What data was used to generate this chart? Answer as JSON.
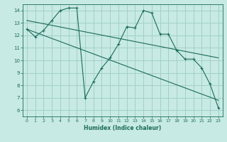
{
  "xlabel": "Humidex (Indice chaleur)",
  "xlim": [
    -0.5,
    23.5
  ],
  "ylim": [
    5.5,
    14.5
  ],
  "xticks": [
    0,
    1,
    2,
    3,
    4,
    5,
    6,
    7,
    8,
    9,
    10,
    11,
    12,
    13,
    14,
    15,
    16,
    17,
    18,
    19,
    20,
    21,
    22,
    23
  ],
  "yticks": [
    6,
    7,
    8,
    9,
    10,
    11,
    12,
    13,
    14
  ],
  "bg_color": "#c8eae4",
  "grid_color": "#a0d0c8",
  "line_color": "#1a6b5a",
  "series1_x": [
    0,
    1,
    2,
    3,
    4,
    5,
    6,
    7,
    8,
    9,
    10,
    11,
    12,
    13,
    14,
    15,
    16,
    17,
    18,
    19,
    20,
    21,
    22,
    23
  ],
  "series1_y": [
    12.5,
    11.9,
    12.4,
    13.2,
    14.0,
    14.2,
    14.2,
    7.0,
    8.3,
    9.4,
    10.2,
    11.3,
    12.7,
    12.6,
    14.0,
    13.8,
    12.1,
    12.1,
    10.8,
    10.1,
    10.1,
    9.4,
    8.1,
    6.2
  ],
  "trend1_x": [
    0,
    23
  ],
  "trend1_y": [
    13.2,
    10.2
  ],
  "trend2_x": [
    0,
    23
  ],
  "trend2_y": [
    12.5,
    6.8
  ]
}
